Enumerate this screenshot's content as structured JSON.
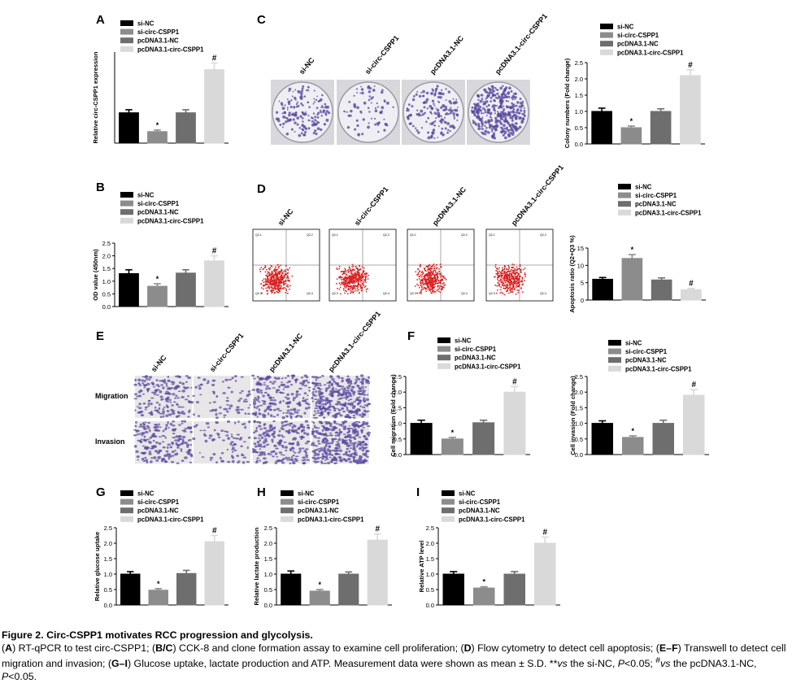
{
  "colors": {
    "si_nc": "#000000",
    "si_circ": "#8c8c8c",
    "pc_nc": "#6e6e6e",
    "pc_circ": "#d9d9d9",
    "dots": "#d82020",
    "stain": "#5a4aa0"
  },
  "legend": [
    "si-NC",
    "si-circ-CSPP1",
    "pcDNA3.1-NC",
    "pcDNA3.1-circ-CSPP1"
  ],
  "panels": {
    "A": "A",
    "B": "B",
    "C": "C",
    "D": "D",
    "E": "E",
    "F": "F",
    "G": "G",
    "H": "H",
    "I": "I"
  },
  "image_labels": {
    "plates": [
      "si-NC",
      "si-circ-CSPP1",
      "pcDNA3.1-NC",
      "pcDNA3.1-circ-CSPP1"
    ],
    "flow": [
      "si-NC",
      "si-circ-CSPP1",
      "pcDNA3.1-NC",
      "pcDNA3.1-circ-CSPP1"
    ],
    "transwell_cols": [
      "si-NC",
      "si-circ-CSPP1",
      "pcDNA3.1-NC",
      "pcDNA3.1-circ-CSPP1"
    ],
    "transwell_rows": [
      "Migration",
      "Invasion"
    ],
    "flow_quadrants": [
      [
        "Q2-1",
        "Q2-2",
        "Q2-3",
        "Q2-4"
      ],
      [
        "Q2-1",
        "Q2-2",
        "Q2-3",
        "Q2-4"
      ],
      [
        "Q2-1",
        "Q2-2",
        "Q2-3",
        "Q2-4"
      ],
      [
        "Q2-1",
        "Q2-2",
        "Q2-3",
        "Q2-4"
      ]
    ]
  },
  "chart_data": [
    {
      "id": "A",
      "type": "bar",
      "categories": [
        "si-NC",
        "si-circ-CSPP1",
        "pcDNA3.1-NC",
        "pcDNA3.1-circ-CSPP1"
      ],
      "values": [
        1.0,
        0.38,
        1.0,
        2.42
      ],
      "errors": [
        0.1,
        0.05,
        0.1,
        0.22
      ],
      "marks": [
        "",
        "*",
        "",
        "#"
      ],
      "ylabel": "Relative circ-CSPP1 expression",
      "ylim": [
        0,
        3
      ],
      "ticks": []
    },
    {
      "id": "B",
      "type": "bar",
      "categories": [
        "si-NC",
        "si-circ-CSPP1",
        "pcDNA3.1-NC",
        "pcDNA3.1-circ-CSPP1"
      ],
      "values": [
        1.3,
        0.8,
        1.32,
        1.8
      ],
      "errors": [
        0.15,
        0.1,
        0.13,
        0.2
      ],
      "marks": [
        "",
        "*",
        "",
        "#"
      ],
      "ylabel": "OD value (450nm)",
      "ylim": [
        0,
        2.5
      ],
      "ticks": [
        "0.0",
        "0.5",
        "1.0",
        "1.5",
        "2.0",
        "2.5"
      ]
    },
    {
      "id": "C",
      "type": "bar",
      "categories": [
        "si-NC",
        "si-circ-CSPP1",
        "pcDNA3.1-NC",
        "pcDNA3.1-circ-CSPP1"
      ],
      "values": [
        1.0,
        0.5,
        1.0,
        2.1
      ],
      "errors": [
        0.1,
        0.05,
        0.08,
        0.18
      ],
      "marks": [
        "",
        "*",
        "",
        "#"
      ],
      "ylabel": "Colony numbers (Fold change)",
      "ylim": [
        0,
        2.5
      ],
      "ticks": [
        "0.0",
        "0.5",
        "1.0",
        "1.5",
        "2.0",
        "2.5"
      ]
    },
    {
      "id": "D",
      "type": "bar",
      "categories": [
        "si-NC",
        "si-circ-CSPP1",
        "pcDNA3.1-NC",
        "pcDNA3.1-circ-CSPP1"
      ],
      "values": [
        6.0,
        12.0,
        5.8,
        3.0
      ],
      "errors": [
        0.5,
        1.1,
        0.6,
        0.35
      ],
      "marks": [
        "",
        "*",
        "",
        "#"
      ],
      "ylabel": "Apoptosis ratio (Q2+Q3 %)",
      "ylim": [
        0,
        15
      ],
      "ticks": [
        "0",
        "5",
        "10",
        "15"
      ]
    },
    {
      "id": "F1",
      "type": "bar",
      "categories": [
        "si-NC",
        "si-circ-CSPP1",
        "pcDNA3.1-NC",
        "pcDNA3.1-circ-CSPP1"
      ],
      "values": [
        1.0,
        0.5,
        1.02,
        2.0
      ],
      "errors": [
        0.1,
        0.05,
        0.08,
        0.18
      ],
      "marks": [
        "",
        "*",
        "",
        "#"
      ],
      "ylabel": "Cell migration (Fold change)",
      "ylim": [
        0,
        2.5
      ],
      "ticks": [
        "0.0",
        "0.5",
        "1.0",
        "1.5",
        "2.0",
        "2.5"
      ]
    },
    {
      "id": "F2",
      "type": "bar",
      "categories": [
        "si-NC",
        "si-circ-CSPP1",
        "pcDNA3.1-NC",
        "pcDNA3.1-circ-CSPP1"
      ],
      "values": [
        1.0,
        0.55,
        1.0,
        1.9
      ],
      "errors": [
        0.08,
        0.05,
        0.1,
        0.18
      ],
      "marks": [
        "",
        "*",
        "",
        "#"
      ],
      "ylabel": "Cell invasion (Fold change)",
      "ylim": [
        0,
        2.5
      ],
      "ticks": [
        "0.0",
        "0.5",
        "1.0",
        "1.5",
        "2.0",
        "2.5"
      ]
    },
    {
      "id": "G",
      "type": "bar",
      "categories": [
        "si-NC",
        "si-circ-CSPP1",
        "pcDNA3.1-NC",
        "pcDNA3.1-circ-CSPP1"
      ],
      "values": [
        1.0,
        0.48,
        1.02,
        2.05
      ],
      "errors": [
        0.08,
        0.05,
        0.1,
        0.2
      ],
      "marks": [
        "",
        "*",
        "",
        "#"
      ],
      "ylabel": "Relative glucose uptake",
      "ylim": [
        0,
        2.5
      ],
      "ticks": [
        "0.0",
        "0.5",
        "1.0",
        "1.5",
        "2.0",
        "2.5"
      ]
    },
    {
      "id": "H",
      "type": "bar",
      "categories": [
        "si-NC",
        "si-circ-CSPP1",
        "pcDNA3.1-NC",
        "pcDNA3.1-circ-CSPP1"
      ],
      "values": [
        1.0,
        0.45,
        1.0,
        2.1
      ],
      "errors": [
        0.1,
        0.05,
        0.07,
        0.2
      ],
      "marks": [
        "",
        "*",
        "",
        "#"
      ],
      "ylabel": "Relative lactate production",
      "ylim": [
        0,
        2.5
      ],
      "ticks": [
        "0.0",
        "0.5",
        "1.0",
        "1.5",
        "2.0",
        "2.5"
      ]
    },
    {
      "id": "I",
      "type": "bar",
      "categories": [
        "si-NC",
        "si-circ-CSPP1",
        "pcDNA3.1-NC",
        "pcDNA3.1-circ-CSPP1"
      ],
      "values": [
        1.0,
        0.55,
        1.0,
        2.0
      ],
      "errors": [
        0.08,
        0.04,
        0.08,
        0.2
      ],
      "marks": [
        "",
        "*",
        "",
        "#"
      ],
      "ylabel": "Relative ATP level",
      "ylim": [
        0,
        2.5
      ],
      "ticks": [
        "0.0",
        "0.5",
        "1.0",
        "1.5",
        "2.0",
        "2.5"
      ]
    }
  ],
  "caption": {
    "title": "Figure 2. Circ-CSPP1 motivates RCC progression and glycolysis.",
    "body_parts": [
      [
        "(",
        ""
      ],
      [
        "A",
        "b"
      ],
      [
        ") RT-qPCR to test circ-CSPP1; (",
        ""
      ],
      [
        "B/C",
        "b"
      ],
      [
        ") CCK-8 and clone formation assay to examine cell proliferation; (",
        ""
      ],
      [
        "D",
        "b"
      ],
      [
        ") Flow cytometry to detect cell apoptosis; (",
        ""
      ],
      [
        "E–F",
        "b"
      ],
      [
        ") Transwell to detect cell migration and invasion; (",
        ""
      ],
      [
        "G–I",
        "b"
      ],
      [
        ") Glucose uptake, lactate production and ATP. Measurement data were shown as mean ± S.D. **",
        ""
      ],
      [
        "vs",
        "i"
      ],
      [
        " the si-NC, ",
        ""
      ],
      [
        "P",
        "i"
      ],
      [
        "<0.05; ",
        ""
      ],
      [
        "#",
        "sup"
      ],
      [
        "vs",
        "i"
      ],
      [
        " the pcDNA3.1-NC, ",
        ""
      ],
      [
        "P",
        "i"
      ],
      [
        "<0.05.",
        ""
      ]
    ]
  }
}
